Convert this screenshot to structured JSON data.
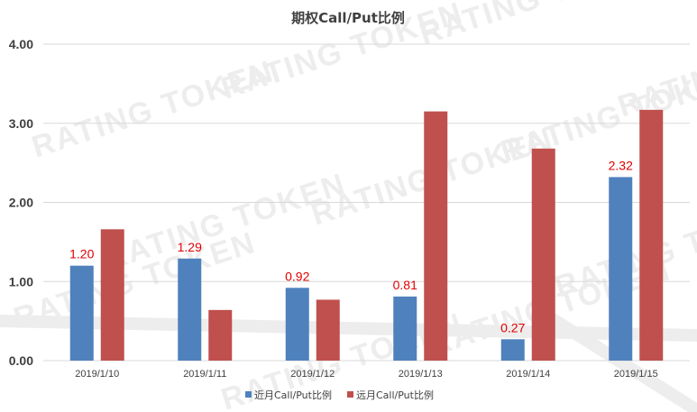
{
  "watermark": "RATING TOKEN",
  "chart_data": {
    "type": "bar",
    "title": "期权Call/Put比例",
    "categories": [
      "2019/1/10",
      "2019/1/11",
      "2019/1/12",
      "2019/1/13",
      "2019/1/14",
      "2019/1/15"
    ],
    "series": [
      {
        "name": "近月Call/Put比例",
        "color": "#4f81bd",
        "values": [
          1.2,
          1.29,
          0.92,
          0.81,
          0.27,
          2.32
        ],
        "data_labels": [
          "1.20",
          "1.29",
          "0.92",
          "0.81",
          "0.27",
          "2.32"
        ]
      },
      {
        "name": "远月Call/Put比例",
        "color": "#c0504d",
        "values": [
          1.66,
          0.64,
          0.77,
          3.15,
          2.68,
          3.17
        ]
      }
    ],
    "yticks": [
      "0.00",
      "1.00",
      "2.00",
      "3.00",
      "4.00"
    ],
    "ylim": [
      0,
      4
    ],
    "grid": true,
    "legend_position": "bottom",
    "label_color": "#e00000"
  }
}
